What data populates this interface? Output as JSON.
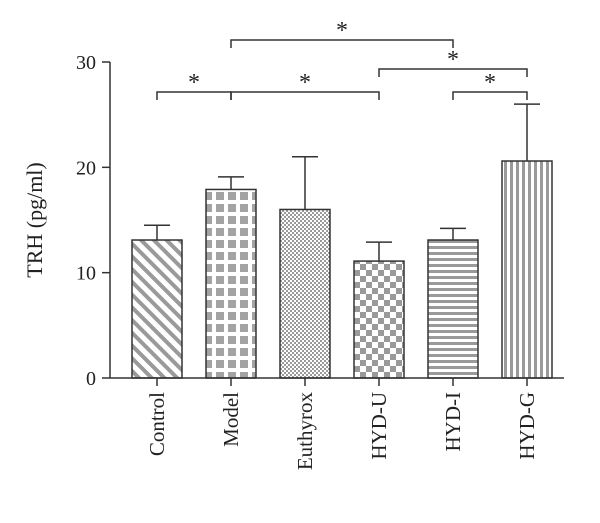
{
  "chart_data": {
    "type": "bar",
    "title": "",
    "xlabel": "",
    "ylabel": "TRH (pg/ml)",
    "ylim": [
      0,
      30
    ],
    "yticks": [
      0,
      10,
      20,
      30
    ],
    "grid": false,
    "categories": [
      "Control",
      "Model",
      "Euthyrox",
      "HYD-U",
      "HYD-I",
      "HYD-G"
    ],
    "values": [
      13.1,
      17.9,
      16.0,
      11.1,
      13.1,
      20.6
    ],
    "error_upper": [
      1.4,
      1.2,
      5.0,
      1.8,
      1.1,
      5.4
    ],
    "bar_fill_color": "#9a9a9a",
    "bar_outline_color": "#333333",
    "patterns": [
      "diagonal-stripes",
      "large-checker",
      "fine-dots",
      "small-checker",
      "horizontal-stripes",
      "vertical-stripes"
    ],
    "significance": [
      {
        "from": "Control",
        "to": "Model",
        "label": "*"
      },
      {
        "from": "Model",
        "to": "HYD-U",
        "label": "*"
      },
      {
        "from": "Model",
        "to": "HYD-I",
        "label": "*"
      },
      {
        "from": "HYD-U",
        "to": "HYD-G",
        "label": "*"
      },
      {
        "from": "HYD-I",
        "to": "HYD-G",
        "label": "*"
      }
    ]
  }
}
